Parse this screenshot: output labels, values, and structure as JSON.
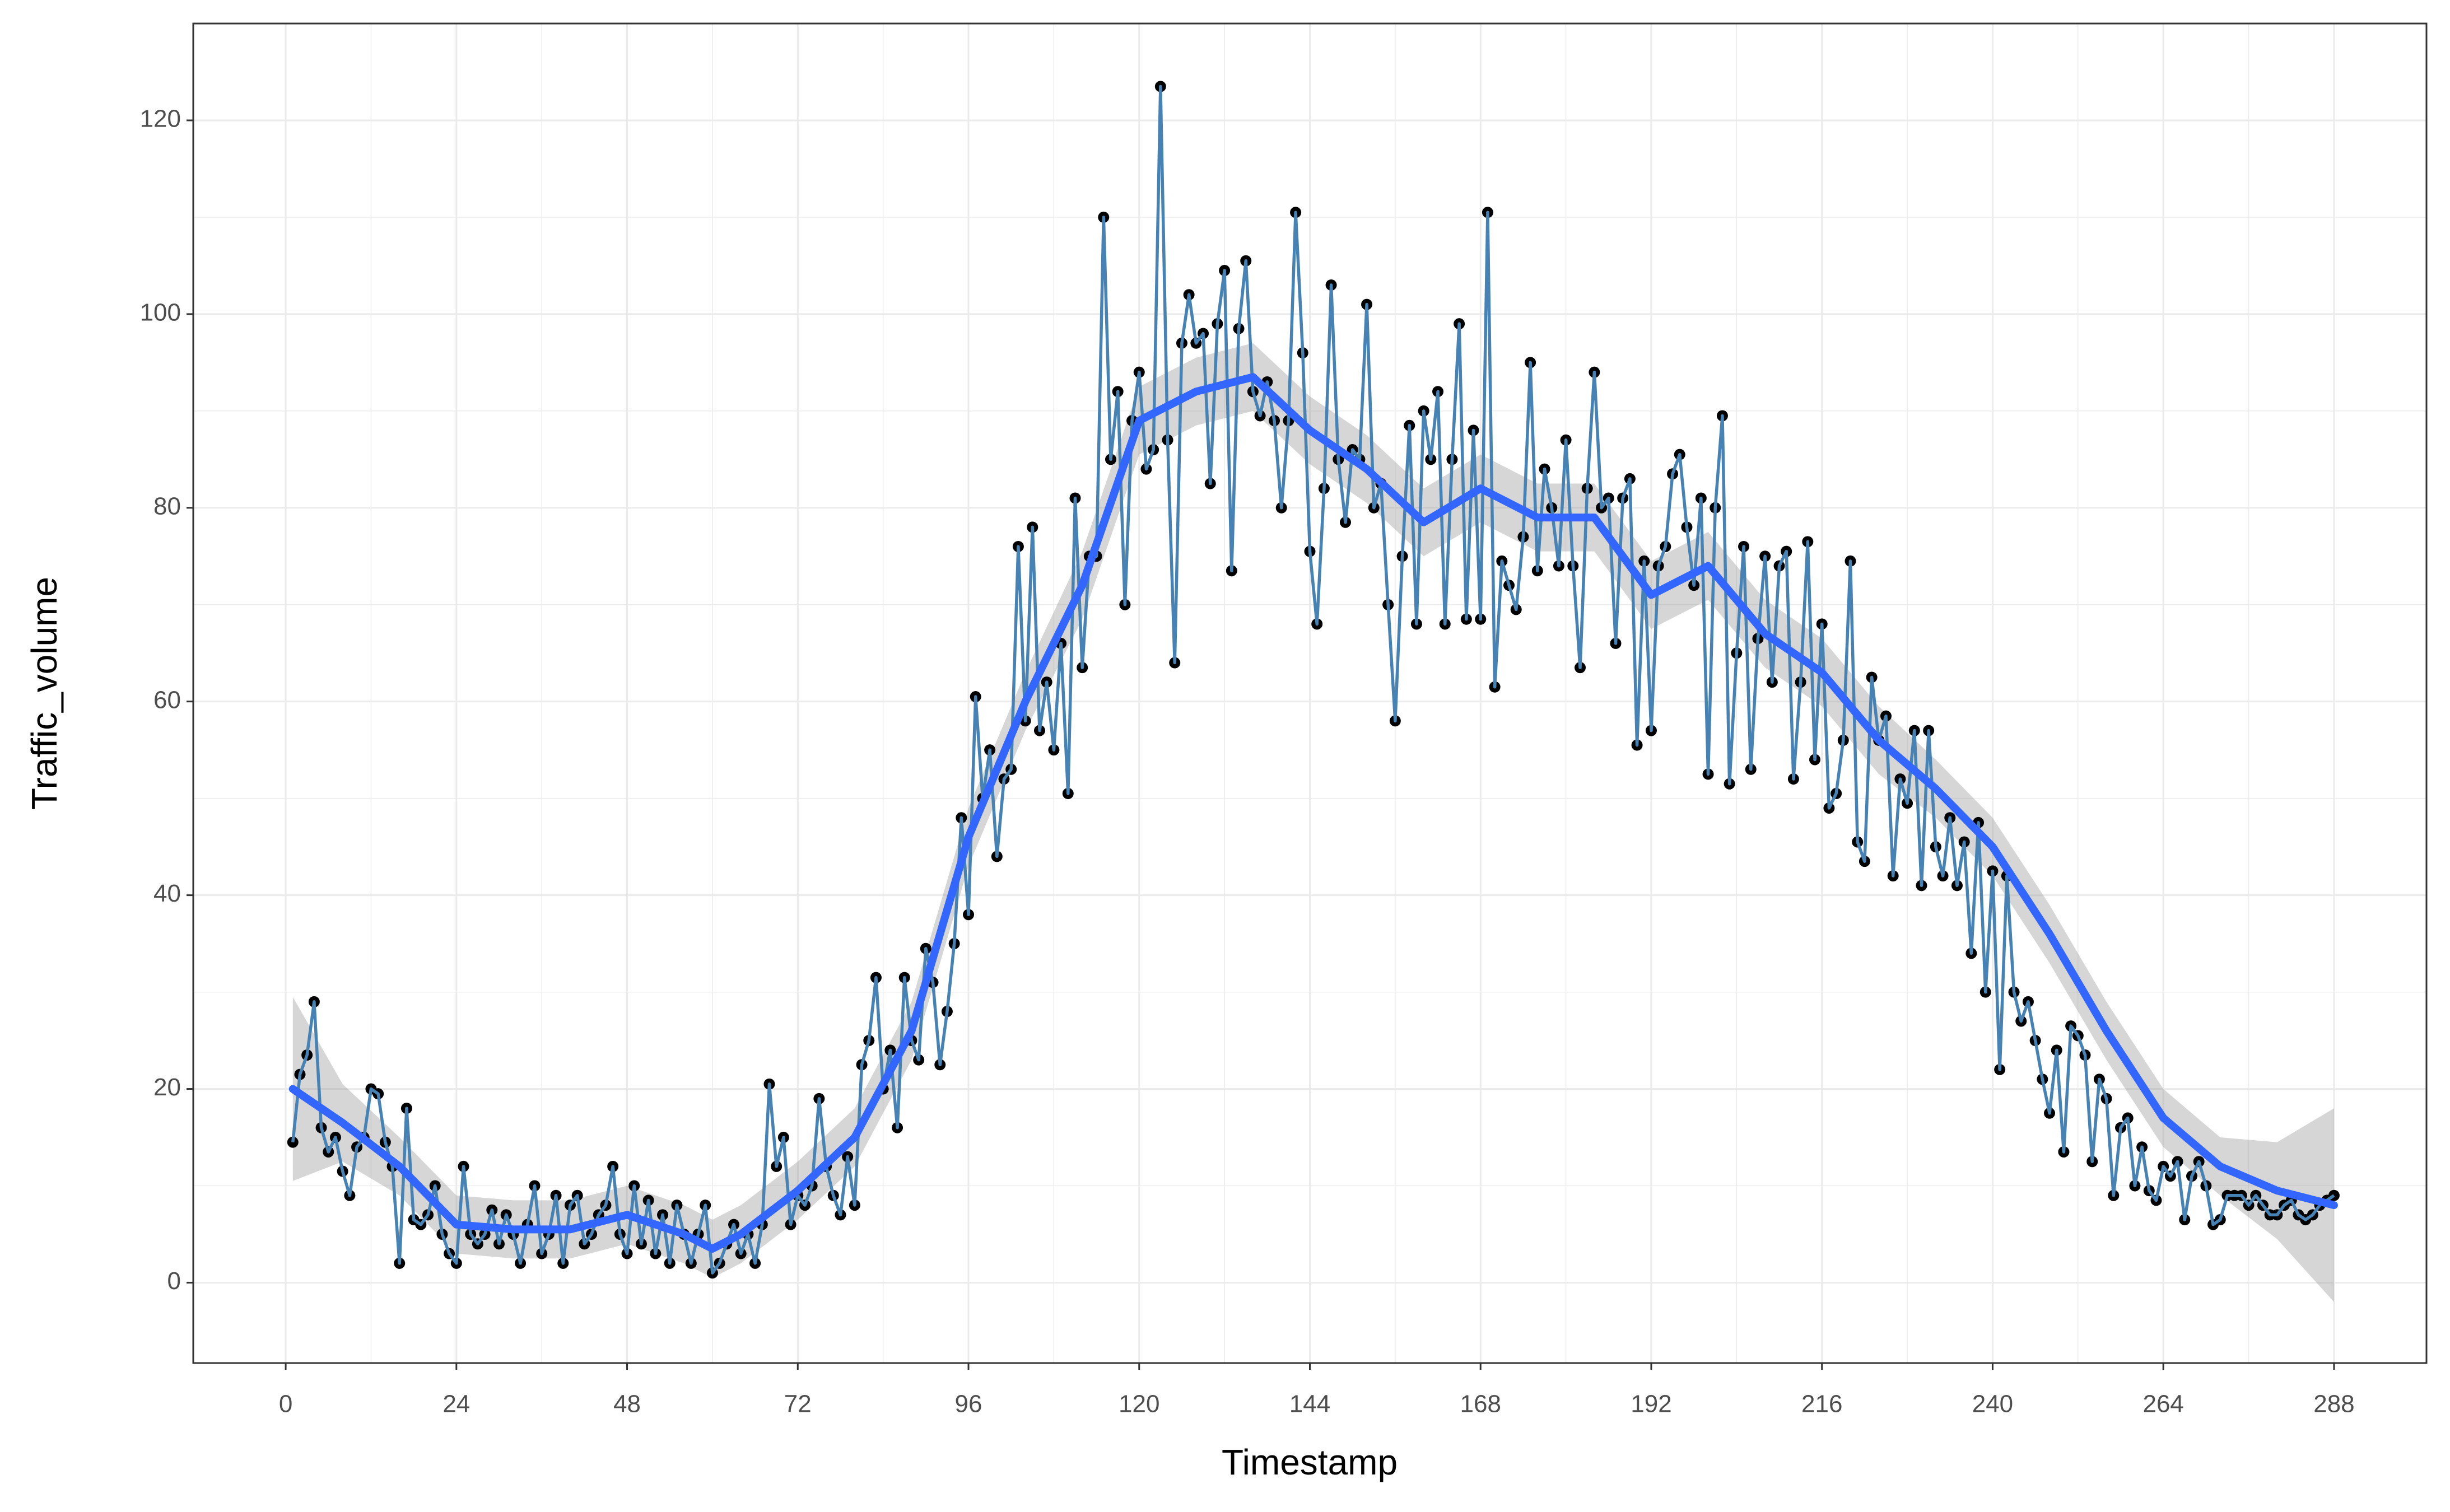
{
  "chart_data": {
    "type": "line",
    "x_label": "Timestamp",
    "y_label": "Traffic_volume",
    "x": [
      1,
      2,
      3,
      4,
      5,
      6,
      7,
      8,
      9,
      10,
      11,
      12,
      13,
      14,
      15,
      16,
      17,
      18,
      19,
      20,
      21,
      22,
      23,
      24,
      25,
      26,
      27,
      28,
      29,
      30,
      31,
      32,
      33,
      34,
      35,
      36,
      37,
      38,
      39,
      40,
      41,
      42,
      43,
      44,
      45,
      46,
      47,
      48,
      49,
      50,
      51,
      52,
      53,
      54,
      55,
      56,
      57,
      58,
      59,
      60,
      61,
      62,
      63,
      64,
      65,
      66,
      67,
      68,
      69,
      70,
      71,
      72,
      73,
      74,
      75,
      76,
      77,
      78,
      79,
      80,
      81,
      82,
      83,
      84,
      85,
      86,
      87,
      88,
      89,
      90,
      91,
      92,
      93,
      94,
      95,
      96,
      97,
      98,
      99,
      100,
      101,
      102,
      103,
      104,
      105,
      106,
      107,
      108,
      109,
      110,
      111,
      112,
      113,
      114,
      115,
      116,
      117,
      118,
      119,
      120,
      121,
      122,
      123,
      124,
      125,
      126,
      127,
      128,
      129,
      130,
      131,
      132,
      133,
      134,
      135,
      136,
      137,
      138,
      139,
      140,
      141,
      142,
      143,
      144,
      145,
      146,
      147,
      148,
      149,
      150,
      151,
      152,
      153,
      154,
      155,
      156,
      157,
      158,
      159,
      160,
      161,
      162,
      163,
      164,
      165,
      166,
      167,
      168,
      169,
      170,
      171,
      172,
      173,
      174,
      175,
      176,
      177,
      178,
      179,
      180,
      181,
      182,
      183,
      184,
      185,
      186,
      187,
      188,
      189,
      190,
      191,
      192,
      193,
      194,
      195,
      196,
      197,
      198,
      199,
      200,
      201,
      202,
      203,
      204,
      205,
      206,
      207,
      208,
      209,
      210,
      211,
      212,
      213,
      214,
      215,
      216,
      217,
      218,
      219,
      220,
      221,
      222,
      223,
      224,
      225,
      226,
      227,
      228,
      229,
      230,
      231,
      232,
      233,
      234,
      235,
      236,
      237,
      238,
      239,
      240,
      241,
      242,
      243,
      244,
      245,
      246,
      247,
      248,
      249,
      250,
      251,
      252,
      253,
      254,
      255,
      256,
      257,
      258,
      259,
      260,
      261,
      262,
      263,
      264,
      265,
      266,
      267,
      268,
      269,
      270,
      271,
      272,
      273,
      274,
      275,
      276,
      277,
      278,
      279,
      280,
      281,
      282,
      283,
      284,
      285,
      286,
      287,
      288
    ],
    "values": [
      14.5,
      21.5,
      23.5,
      29,
      16,
      13.5,
      15,
      11.5,
      9,
      14,
      15,
      20,
      19.5,
      14.5,
      12,
      2,
      18,
      6.5,
      6,
      7,
      10,
      5,
      3,
      2,
      12,
      5,
      4,
      5,
      7.5,
      4,
      7,
      5,
      2,
      6,
      10,
      3,
      5,
      9,
      2,
      8,
      9,
      4,
      5,
      7,
      8,
      12,
      5,
      3,
      10,
      4,
      8.5,
      3,
      7,
      2,
      8,
      5,
      2,
      5,
      8,
      1,
      2,
      4,
      6,
      3,
      5,
      2,
      6,
      20.5,
      12,
      15,
      6,
      9,
      8,
      10,
      19,
      12,
      9,
      7,
      13,
      8,
      22.5,
      25,
      31.5,
      20,
      24,
      16,
      31.5,
      25,
      23,
      34.5,
      31,
      22.5,
      28,
      35,
      48,
      38,
      60.5,
      50,
      55,
      44,
      52,
      53,
      76,
      58,
      78,
      57,
      62,
      55,
      66,
      50.5,
      81,
      63.5,
      75,
      75,
      110,
      85,
      92,
      70,
      89,
      94,
      84,
      86,
      123.5,
      87,
      64,
      97,
      102,
      97,
      98,
      82.5,
      99,
      104.5,
      73.5,
      98.5,
      105.5,
      92,
      89.5,
      93,
      89,
      80,
      89,
      110.5,
      96,
      75.5,
      68,
      82,
      103,
      85,
      78.5,
      86,
      85,
      101,
      80,
      82.5,
      70,
      58,
      75,
      88.5,
      68,
      90,
      85,
      92,
      68,
      85,
      99,
      68.5,
      88,
      68.5,
      110.5,
      61.5,
      74.5,
      72,
      69.5,
      77,
      95,
      73.5,
      84,
      80,
      74,
      87,
      74,
      63.5,
      82,
      94,
      80,
      81,
      66,
      81,
      83,
      55.5,
      74.5,
      57,
      74,
      76,
      83.5,
      85.5,
      78,
      72,
      81,
      52.5,
      80,
      89.5,
      51.5,
      65,
      76,
      53,
      66.5,
      75,
      62,
      74,
      75.5,
      52,
      62,
      76.5,
      54,
      68,
      49,
      50.5,
      56,
      74.5,
      45.5,
      43.5,
      62.5,
      56,
      58.5,
      42,
      52,
      49.5,
      57,
      41,
      57,
      45,
      42,
      48,
      41,
      45.5,
      34,
      47.5,
      30,
      42.5,
      22,
      42,
      30,
      27,
      29,
      25,
      21,
      17.5,
      24,
      13.5,
      26.5,
      25.5,
      23.5,
      12.5,
      21,
      19,
      9,
      16,
      17,
      10,
      14,
      9.5,
      8.5,
      12,
      11,
      12.5,
      6.5,
      11,
      12.5,
      10,
      6,
      6.5,
      9,
      9,
      9,
      8,
      9,
      8,
      7,
      7,
      8,
      8.5,
      7,
      6.5,
      7,
      8,
      8.5,
      9
    ],
    "line_color": "#4682b4",
    "point_color": "#000000",
    "smooth": {
      "color": "#3366ff",
      "band_color": "#999999",
      "x": [
        1,
        8,
        16,
        24,
        32,
        40,
        48,
        56,
        60,
        64,
        72,
        80,
        88,
        96,
        104,
        112,
        120,
        128,
        136,
        144,
        152,
        160,
        168,
        176,
        184,
        192,
        200,
        208,
        216,
        224,
        232,
        240,
        248,
        256,
        264,
        272,
        280,
        288
      ],
      "values": [
        20,
        16.5,
        12,
        6,
        5.5,
        5.5,
        7,
        5,
        3.5,
        5,
        9.5,
        15,
        26,
        46,
        60,
        72,
        89,
        92,
        93.5,
        88,
        84,
        78.5,
        82,
        79,
        79,
        71,
        74,
        67,
        63,
        56,
        51,
        45,
        36,
        26,
        17,
        12,
        9.5,
        8
      ],
      "lower": [
        10.5,
        12.5,
        9,
        3,
        2.5,
        2.5,
        4,
        2,
        0.5,
        2,
        6.5,
        12,
        23,
        43,
        57,
        68.5,
        85.5,
        88.5,
        90,
        84.5,
        80.5,
        75,
        78.5,
        75.5,
        75.5,
        67.5,
        70.5,
        63.5,
        59.5,
        52.5,
        48,
        42,
        33,
        23,
        14,
        9,
        4.5,
        -2
      ],
      "upper": [
        29.5,
        20.5,
        15,
        9,
        8.5,
        8.5,
        10,
        8,
        6.5,
        8,
        12.5,
        18,
        29,
        49,
        63,
        75.5,
        92.5,
        95.5,
        97,
        91.5,
        87.5,
        82,
        85.5,
        82.5,
        82.5,
        74.5,
        77.5,
        70.5,
        66.5,
        59.5,
        54,
        48,
        39,
        29,
        20,
        15,
        14.5,
        18
      ]
    },
    "xlim": [
      -13,
      301
    ],
    "ylim": [
      -8.3,
      130
    ],
    "xticks": [
      0,
      24,
      48,
      72,
      96,
      120,
      144,
      168,
      192,
      216,
      240,
      264,
      288
    ],
    "yticks": [
      0,
      20,
      40,
      60,
      80,
      100,
      120
    ],
    "grid": true
  }
}
